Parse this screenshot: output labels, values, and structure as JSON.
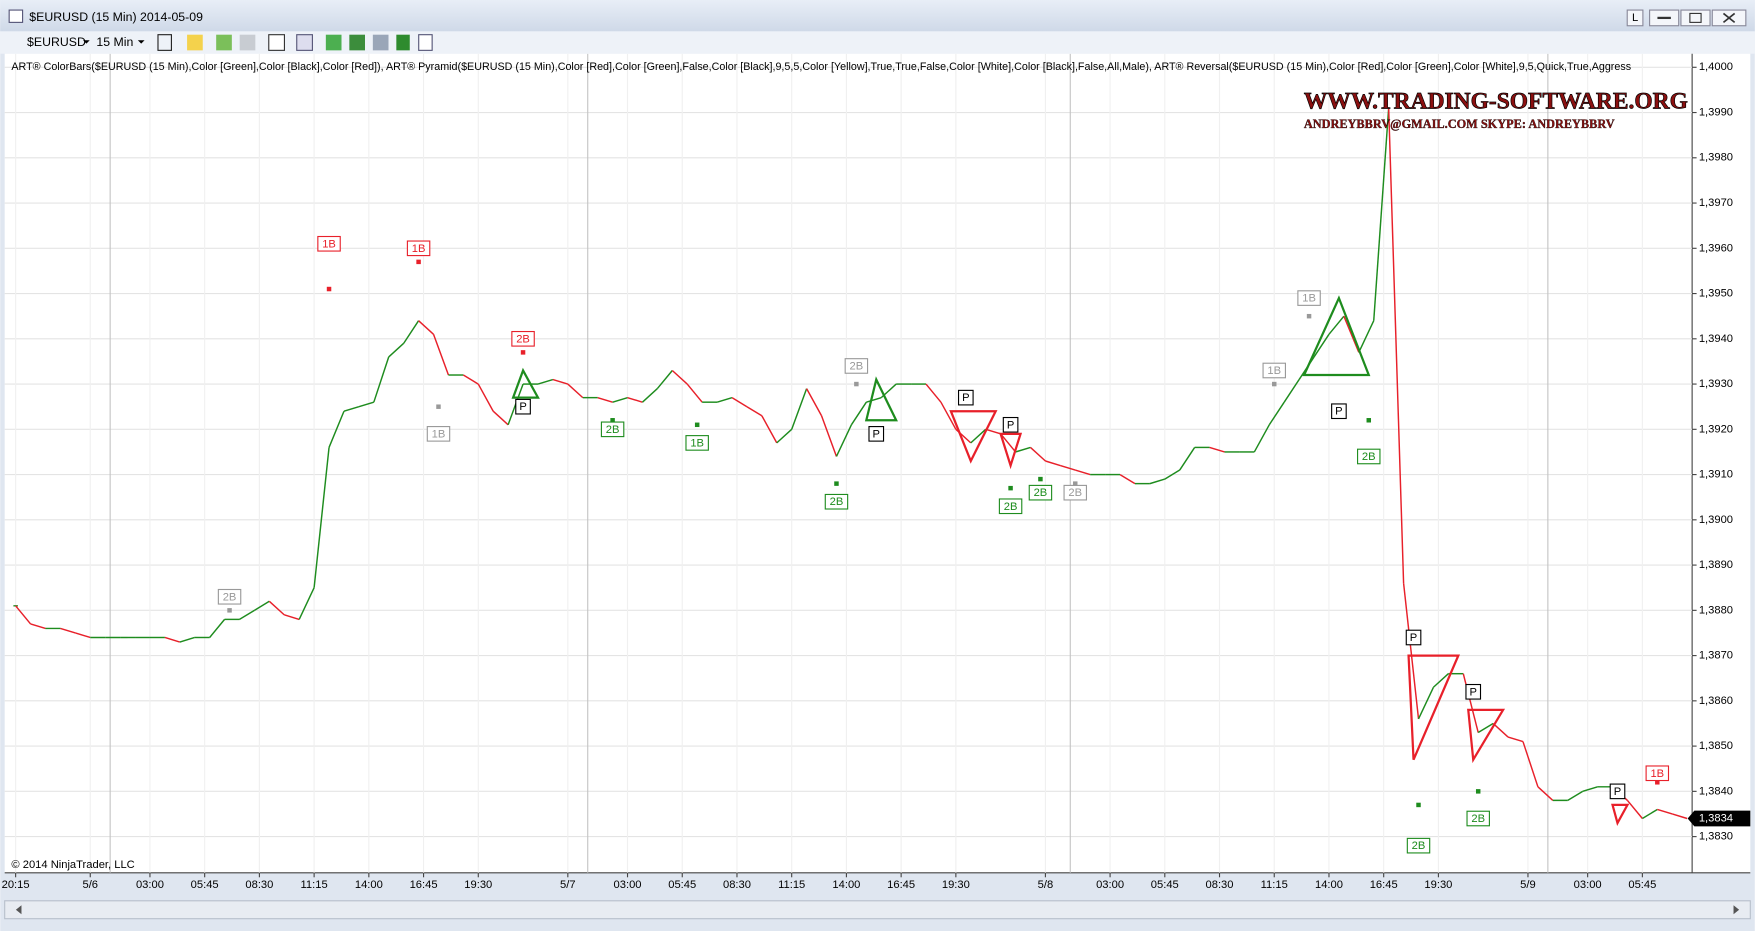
{
  "window": {
    "title": "$EURUSD (15 Min)  2014-05-09",
    "layout_button": "L"
  },
  "toolbar": {
    "instrument": "$EURUSD",
    "interval": "15 Min"
  },
  "indicators": "ART® ColorBars($EURUSD (15 Min),Color [Green],Color [Black],Color [Red]), ART® Pyramid($EURUSD (15 Min),Color [Red],Color [Green],False,Color [Black],9,5,5,Color [Yellow],True,True,False,Color [White],Color [Black],False,All,Male), ART® Reversal($EURUSD (15 Min),Color [Red],Color [Green],Color [White],9,5,Quick,True,Aggress",
  "watermark": {
    "site": "WWW.TRADING-SOFTWARE.ORG",
    "contact": "ANDREYBBRV@GMAIL.COM   SKYPE: ANDREYBBRV"
  },
  "copyright": "© 2014 NinjaTrader, LLC",
  "chart_data": {
    "type": "line",
    "up_color": "#1e8c1e",
    "down_color": "#e8202a",
    "x": [
      0,
      3,
      6,
      9,
      12,
      15,
      18,
      21,
      24,
      27,
      30,
      33,
      36,
      39,
      42,
      45,
      48,
      51,
      54,
      57,
      60,
      63,
      66,
      69,
      72,
      75,
      78,
      81,
      84,
      87,
      90,
      93,
      96,
      99,
      102,
      105,
      108,
      111,
      114,
      117,
      120,
      123,
      126,
      129,
      132,
      135,
      138,
      141,
      144,
      147,
      150,
      153,
      156,
      159,
      162,
      165,
      168,
      171,
      174,
      177,
      180,
      183,
      186,
      189,
      192,
      195,
      198,
      201,
      204,
      207,
      210,
      213,
      216,
      219,
      222,
      225,
      228,
      231,
      234,
      237,
      240,
      243,
      246,
      249,
      252,
      255,
      258,
      261,
      264,
      267,
      270,
      273,
      276,
      279,
      282,
      285,
      288,
      291,
      294,
      297,
      300,
      303,
      306,
      309,
      312,
      315,
      318,
      321,
      324,
      327,
      330,
      333,
      336
    ],
    "values": [
      1.3881,
      1.3877,
      1.3876,
      1.3876,
      1.3875,
      1.3874,
      1.3874,
      1.3874,
      1.3874,
      1.3874,
      1.3874,
      1.3873,
      1.3874,
      1.3874,
      1.3878,
      1.3878,
      1.388,
      1.3882,
      1.3879,
      1.3878,
      1.3885,
      1.3916,
      1.3924,
      1.3925,
      1.3926,
      1.3936,
      1.3939,
      1.3944,
      1.3941,
      1.3932,
      1.3932,
      1.393,
      1.3924,
      1.3921,
      1.393,
      1.393,
      1.3931,
      1.393,
      1.3927,
      1.3927,
      1.3926,
      1.3927,
      1.3926,
      1.3929,
      1.3933,
      1.393,
      1.3926,
      1.3926,
      1.3927,
      1.3925,
      1.3923,
      1.3917,
      1.392,
      1.3929,
      1.3923,
      1.3914,
      1.3921,
      1.3926,
      1.3927,
      1.393,
      1.393,
      1.393,
      1.3926,
      1.392,
      1.3917,
      1.392,
      1.3919,
      1.3915,
      1.3916,
      1.3913,
      1.3912,
      1.3911,
      1.391,
      1.391,
      1.391,
      1.3908,
      1.3908,
      1.3909,
      1.3911,
      1.3916,
      1.3916,
      1.3915,
      1.3915,
      1.3915,
      1.3921,
      1.3926,
      1.3931,
      1.3936,
      1.3941,
      1.3945,
      1.3937,
      1.3944,
      1.3991,
      1.3886,
      1.3856,
      1.3863,
      1.3866,
      1.3866,
      1.3853,
      1.3855,
      1.3852,
      1.3851,
      1.3841,
      1.3838,
      1.3838,
      1.384,
      1.3841,
      1.3841,
      1.3838,
      1.3834,
      1.3836,
      1.3835,
      1.3834
    ],
    "xlim": [
      -2.2,
      337
    ],
    "ylim": [
      1.3822,
      1.4003
    ],
    "grid": true,
    "xticks": [
      {
        "value": 0,
        "label": "20:15"
      },
      {
        "value": 15,
        "label": "5/6"
      },
      {
        "value": 27,
        "label": "03:00"
      },
      {
        "value": 38,
        "label": "05:45"
      },
      {
        "value": 49,
        "label": "08:30"
      },
      {
        "value": 60,
        "label": "11:15"
      },
      {
        "value": 71,
        "label": "14:00"
      },
      {
        "value": 82,
        "label": "16:45"
      },
      {
        "value": 93,
        "label": "19:30"
      },
      {
        "value": 111,
        "label": "5/7"
      },
      {
        "value": 123,
        "label": "03:00"
      },
      {
        "value": 134,
        "label": "05:45"
      },
      {
        "value": 145,
        "label": "08:30"
      },
      {
        "value": 156,
        "label": "11:15"
      },
      {
        "value": 167,
        "label": "14:00"
      },
      {
        "value": 178,
        "label": "16:45"
      },
      {
        "value": 189,
        "label": "19:30"
      },
      {
        "value": 207,
        "label": "5/8"
      },
      {
        "value": 220,
        "label": "03:00"
      },
      {
        "value": 231,
        "label": "05:45"
      },
      {
        "value": 242,
        "label": "08:30"
      },
      {
        "value": 253,
        "label": "11:15"
      },
      {
        "value": 264,
        "label": "14:00"
      },
      {
        "value": 275,
        "label": "16:45"
      },
      {
        "value": 286,
        "label": "19:30"
      },
      {
        "value": 304,
        "label": "5/9"
      },
      {
        "value": 316,
        "label": "03:00"
      },
      {
        "value": 327,
        "label": "05:45"
      }
    ],
    "yticks": [
      {
        "value": 1.383,
        "label": "1,3830"
      },
      {
        "value": 1.384,
        "label": "1,3840"
      },
      {
        "value": 1.385,
        "label": "1,3850"
      },
      {
        "value": 1.386,
        "label": "1,3860"
      },
      {
        "value": 1.387,
        "label": "1,3870"
      },
      {
        "value": 1.388,
        "label": "1,3880"
      },
      {
        "value": 1.389,
        "label": "1,3890"
      },
      {
        "value": 1.39,
        "label": "1,3900"
      },
      {
        "value": 1.391,
        "label": "1,3910"
      },
      {
        "value": 1.392,
        "label": "1,3920"
      },
      {
        "value": 1.393,
        "label": "1,3930"
      },
      {
        "value": 1.394,
        "label": "1,3940"
      },
      {
        "value": 1.395,
        "label": "1,3950"
      },
      {
        "value": 1.396,
        "label": "1,3960"
      },
      {
        "value": 1.397,
        "label": "1,3970"
      },
      {
        "value": 1.398,
        "label": "1,3980"
      },
      {
        "value": 1.399,
        "label": "1,3990"
      },
      {
        "value": 1.4,
        "label": "1,4000"
      }
    ],
    "session_breaks": [
      19,
      115,
      212,
      308
    ],
    "current_price": {
      "value": 1.3834,
      "label": "1,3834"
    },
    "signals": [
      {
        "label": "1B",
        "x": 63,
        "y": 1.3961,
        "dot": 1.3951,
        "color": "#e8202a"
      },
      {
        "label": "1B",
        "x": 81,
        "y": 1.396,
        "dot": 1.3957,
        "color": "#e8202a"
      },
      {
        "label": "1B",
        "x": 85,
        "y": 1.3919,
        "dot": 1.3925,
        "color": "#999999"
      },
      {
        "label": "2B",
        "x": 43,
        "y": 1.3883,
        "dot": 1.388,
        "color": "#999999"
      },
      {
        "label": "2B",
        "x": 102,
        "y": 1.394,
        "dot": 1.3937,
        "color": "#e8202a"
      },
      {
        "label": "P",
        "x": 102,
        "y": 1.3925,
        "dot": null,
        "color": "#000000"
      },
      {
        "label": "2B",
        "x": 120,
        "y": 1.392,
        "dot": 1.3922,
        "color": "#1e8c1e"
      },
      {
        "label": "1B",
        "x": 137,
        "y": 1.3917,
        "dot": 1.3921,
        "color": "#1e8c1e"
      },
      {
        "label": "2B",
        "x": 169,
        "y": 1.3934,
        "dot": 1.393,
        "color": "#999999"
      },
      {
        "label": "P",
        "x": 173,
        "y": 1.3919,
        "dot": null,
        "color": "#000000"
      },
      {
        "label": "2B",
        "x": 165,
        "y": 1.3904,
        "dot": 1.3908,
        "color": "#1e8c1e"
      },
      {
        "label": "P",
        "x": 191,
        "y": 1.3927,
        "dot": null,
        "color": "#000000"
      },
      {
        "label": "P",
        "x": 200,
        "y": 1.3921,
        "dot": null,
        "color": "#000000"
      },
      {
        "label": "2B",
        "x": 200,
        "y": 1.3903,
        "dot": 1.3907,
        "color": "#1e8c1e"
      },
      {
        "label": "2B",
        "x": 206,
        "y": 1.3906,
        "dot": 1.3909,
        "color": "#1e8c1e"
      },
      {
        "label": "2B",
        "x": 213,
        "y": 1.3906,
        "dot": 1.3908,
        "color": "#999999"
      },
      {
        "label": "1B",
        "x": 253,
        "y": 1.3933,
        "dot": 1.393,
        "color": "#999999"
      },
      {
        "label": "1B",
        "x": 260,
        "y": 1.3949,
        "dot": 1.3945,
        "color": "#999999"
      },
      {
        "label": "P",
        "x": 266,
        "y": 1.3924,
        "dot": null,
        "color": "#000000"
      },
      {
        "label": "2B",
        "x": 272,
        "y": 1.3914,
        "dot": 1.3922,
        "color": "#1e8c1e"
      },
      {
        "label": "P",
        "x": 281,
        "y": 1.3874,
        "dot": null,
        "color": "#000000"
      },
      {
        "label": "2B",
        "x": 282,
        "y": 1.3828,
        "dot": 1.3837,
        "color": "#1e8c1e"
      },
      {
        "label": "P",
        "x": 293,
        "y": 1.3862,
        "dot": null,
        "color": "#000000"
      },
      {
        "label": "2B",
        "x": 294,
        "y": 1.3834,
        "dot": 1.384,
        "color": "#1e8c1e"
      },
      {
        "label": "P",
        "x": 322,
        "y": 1.384,
        "dot": null,
        "color": "#000000"
      },
      {
        "label": "1B",
        "x": 330,
        "y": 1.3844,
        "dot": 1.3842,
        "color": "#e8202a"
      }
    ],
    "pyramids": [
      {
        "color": "#1e8c1e",
        "x": [
          102,
          100,
          105
        ],
        "y": [
          1.3933,
          1.3927,
          1.3927
        ]
      },
      {
        "color": "#1e8c1e",
        "x": [
          173,
          171,
          177
        ],
        "y": [
          1.3931,
          1.3922,
          1.3922
        ]
      },
      {
        "color": "#e8202a",
        "x": [
          188,
          197,
          192
        ],
        "y": [
          1.3924,
          1.3924,
          1.3913
        ]
      },
      {
        "color": "#e8202a",
        "x": [
          198,
          202,
          200
        ],
        "y": [
          1.3919,
          1.3919,
          1.3912
        ]
      },
      {
        "color": "#1e8c1e",
        "x": [
          266,
          259,
          272
        ],
        "y": [
          1.3949,
          1.3932,
          1.3932
        ]
      },
      {
        "color": "#e8202a",
        "x": [
          280,
          290,
          281
        ],
        "y": [
          1.387,
          1.387,
          1.3847
        ]
      },
      {
        "color": "#e8202a",
        "x": [
          292,
          299,
          293
        ],
        "y": [
          1.3858,
          1.3858,
          1.3847
        ]
      },
      {
        "color": "#e8202a",
        "x": [
          321,
          324,
          322
        ],
        "y": [
          1.3837,
          1.3837,
          1.3833
        ]
      }
    ]
  }
}
